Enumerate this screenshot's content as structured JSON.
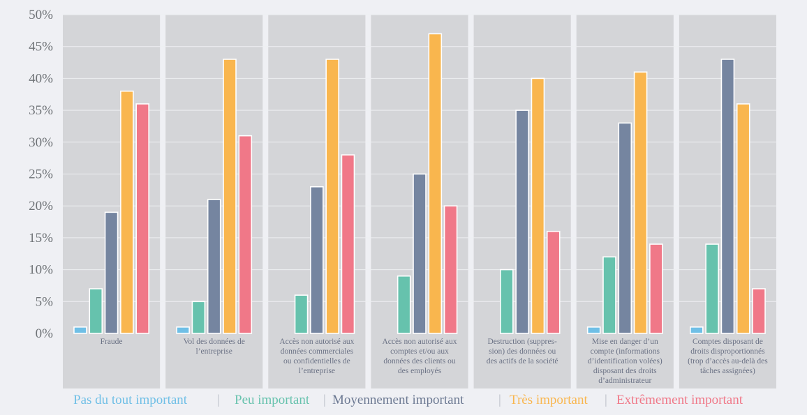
{
  "chart_data": {
    "type": "bar",
    "title": "",
    "xlabel": "",
    "ylabel": "",
    "ylim": [
      0,
      50
    ],
    "yticks": [
      "0%",
      "5%",
      "10%",
      "15%",
      "20%",
      "25%",
      "30%",
      "35%",
      "40%",
      "45%",
      "50%"
    ],
    "grid": true,
    "legend_position": "bottom",
    "categories": [
      [
        "Fraude"
      ],
      [
        "Vol des données de",
        "l’entreprise"
      ],
      [
        "Accès non autorisé aux",
        "données commerciales",
        "ou confidentielles de",
        "l’entreprise"
      ],
      [
        "Accès non autorisé aux",
        "comptes et/ou aux",
        "données des clients ou",
        "des employés"
      ],
      [
        "Destruction (suppres-",
        "sion) des données ou",
        "des actifs de la société"
      ],
      [
        "Mise en danger d’un",
        "compte (informations",
        "d’identification volées)",
        "disposant des droits",
        "d’administrateur"
      ],
      [
        "Comptes disposant de",
        "droits disproportionnés",
        "(trop d’accès au-delà des",
        "tâches assignées)"
      ]
    ],
    "series": [
      {
        "name": "Pas du tout important",
        "color": "#6fbfe6",
        "values": [
          1,
          1,
          0,
          0,
          0,
          1,
          1
        ]
      },
      {
        "name": "Peu important",
        "color": "#66c2ad",
        "values": [
          7,
          5,
          6,
          9,
          10,
          12,
          14
        ]
      },
      {
        "name": "Moyennement important",
        "color": "#7585a0",
        "values": [
          19,
          21,
          23,
          25,
          35,
          33,
          43
        ]
      },
      {
        "name": "Très important",
        "color": "#f9b64e",
        "values": [
          38,
          43,
          43,
          47,
          40,
          41,
          36
        ]
      },
      {
        "name": "Extrêmement important",
        "color": "#f07888",
        "values": [
          36,
          31,
          28,
          20,
          16,
          14,
          7
        ]
      }
    ]
  },
  "legend_separator": "|"
}
